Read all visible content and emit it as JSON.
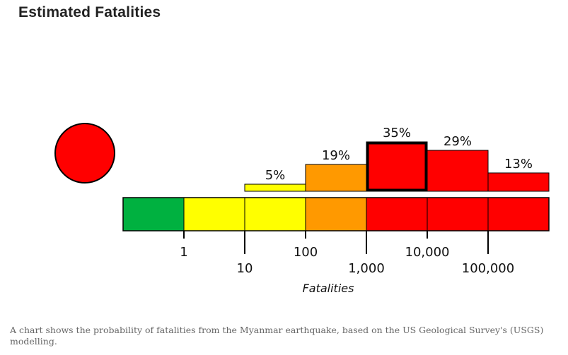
{
  "title": "Estimated Fatalities",
  "caption": "A chart shows the probability of fatalities from the Myanmar earthquake, based on the US Geological Survey's (USGS) modelling.",
  "chart_data": {
    "type": "bar",
    "title": "Estimated Fatalities",
    "xlabel": "Fatalities",
    "ylabel": "",
    "alert_level_color": "#ff0000",
    "categories": [
      "0",
      "1-10",
      "10-100",
      "100-1,000",
      "1,000-10,000",
      "10,000-100,000",
      "100,000+"
    ],
    "values": [
      0,
      0,
      5,
      19,
      35,
      29,
      13
    ],
    "value_labels": [
      "",
      "",
      "5%",
      "19%",
      "35%",
      "29%",
      "13%"
    ],
    "colors": [
      "#00b140",
      "#ffff00",
      "#ffff00",
      "#ff9900",
      "#ff0000",
      "#ff0000",
      "#ff0000"
    ],
    "highlighted_index": 4,
    "tick_labels": [
      "1",
      "10",
      "100",
      "1,000",
      "10,000",
      "100,000"
    ],
    "ylim": [
      0,
      35
    ]
  }
}
